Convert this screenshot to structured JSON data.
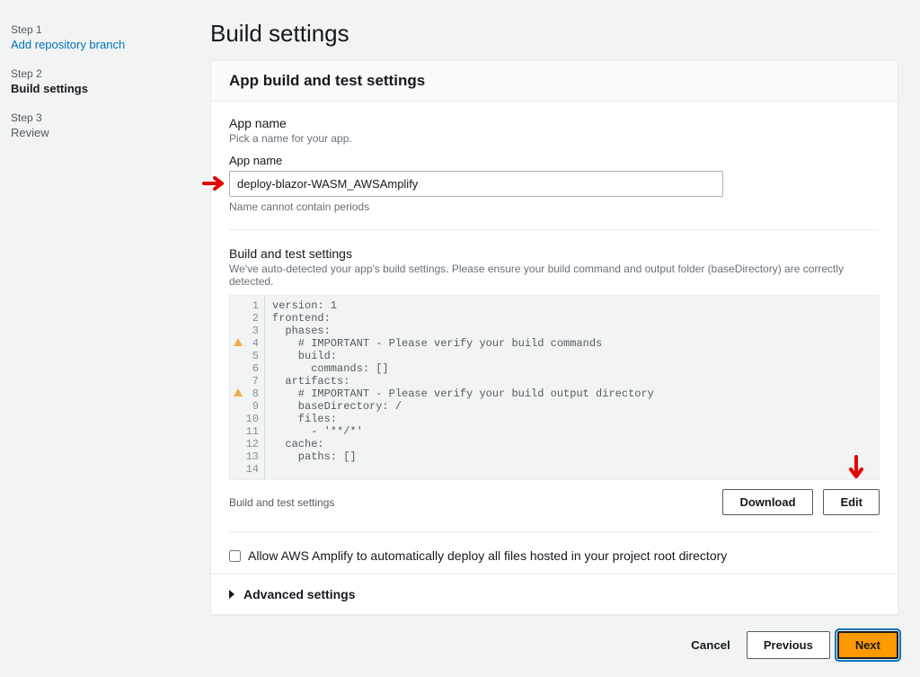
{
  "sidebar": {
    "steps": [
      {
        "label": "Step 1",
        "title": "Add repository branch",
        "state": "link"
      },
      {
        "label": "Step 2",
        "title": "Build settings",
        "state": "active"
      },
      {
        "label": "Step 3",
        "title": "Review",
        "state": "inactive"
      }
    ]
  },
  "page": {
    "title": "Build settings"
  },
  "panel": {
    "header": "App build and test settings",
    "appName": {
      "sectionTitle": "App name",
      "sectionDesc": "Pick a name for your app.",
      "fieldLabel": "App name",
      "value": "deploy-blazor-WASM_AWSAmplify",
      "hint": "Name cannot contain periods"
    },
    "buildSettings": {
      "sectionTitle": "Build and test settings",
      "sectionDesc": "We've auto-detected your app's build settings. Please ensure your build command and output folder (baseDirectory) are correctly detected.",
      "code": {
        "lines": [
          {
            "n": 1,
            "warn": false,
            "text": "version: 1"
          },
          {
            "n": 2,
            "warn": false,
            "text": "frontend:"
          },
          {
            "n": 3,
            "warn": false,
            "text": "  phases:"
          },
          {
            "n": 4,
            "warn": true,
            "text": "    # IMPORTANT - Please verify your build commands"
          },
          {
            "n": 5,
            "warn": false,
            "text": "    build:"
          },
          {
            "n": 6,
            "warn": false,
            "text": "      commands: []"
          },
          {
            "n": 7,
            "warn": false,
            "text": "  artifacts:"
          },
          {
            "n": 8,
            "warn": true,
            "text": "    # IMPORTANT - Please verify your build output directory"
          },
          {
            "n": 9,
            "warn": false,
            "text": "    baseDirectory: /"
          },
          {
            "n": 10,
            "warn": false,
            "text": "    files:"
          },
          {
            "n": 11,
            "warn": false,
            "text": "      - '**/*'"
          },
          {
            "n": 12,
            "warn": false,
            "text": "  cache:"
          },
          {
            "n": 13,
            "warn": false,
            "text": "    paths: []"
          },
          {
            "n": 14,
            "warn": false,
            "text": ""
          }
        ]
      },
      "footerLabel": "Build and test settings",
      "downloadLabel": "Download",
      "editLabel": "Edit"
    },
    "checkbox": {
      "label": "Allow AWS Amplify to automatically deploy all files hosted in your project root directory",
      "checked": false
    },
    "advanced": {
      "title": "Advanced settings"
    }
  },
  "footer": {
    "cancel": "Cancel",
    "previous": "Previous",
    "next": "Next"
  },
  "colors": {
    "background": "#f2f3f3",
    "panelBg": "#ffffff",
    "border": "#eaeded",
    "textPrimary": "#16191f",
    "textSecondary": "#687078",
    "link": "#0073bb",
    "accent": "#ff9900",
    "arrow": "#e10600"
  },
  "annotations": {
    "arrows": [
      {
        "target": "app-name-input"
      },
      {
        "target": "edit-button"
      }
    ]
  }
}
